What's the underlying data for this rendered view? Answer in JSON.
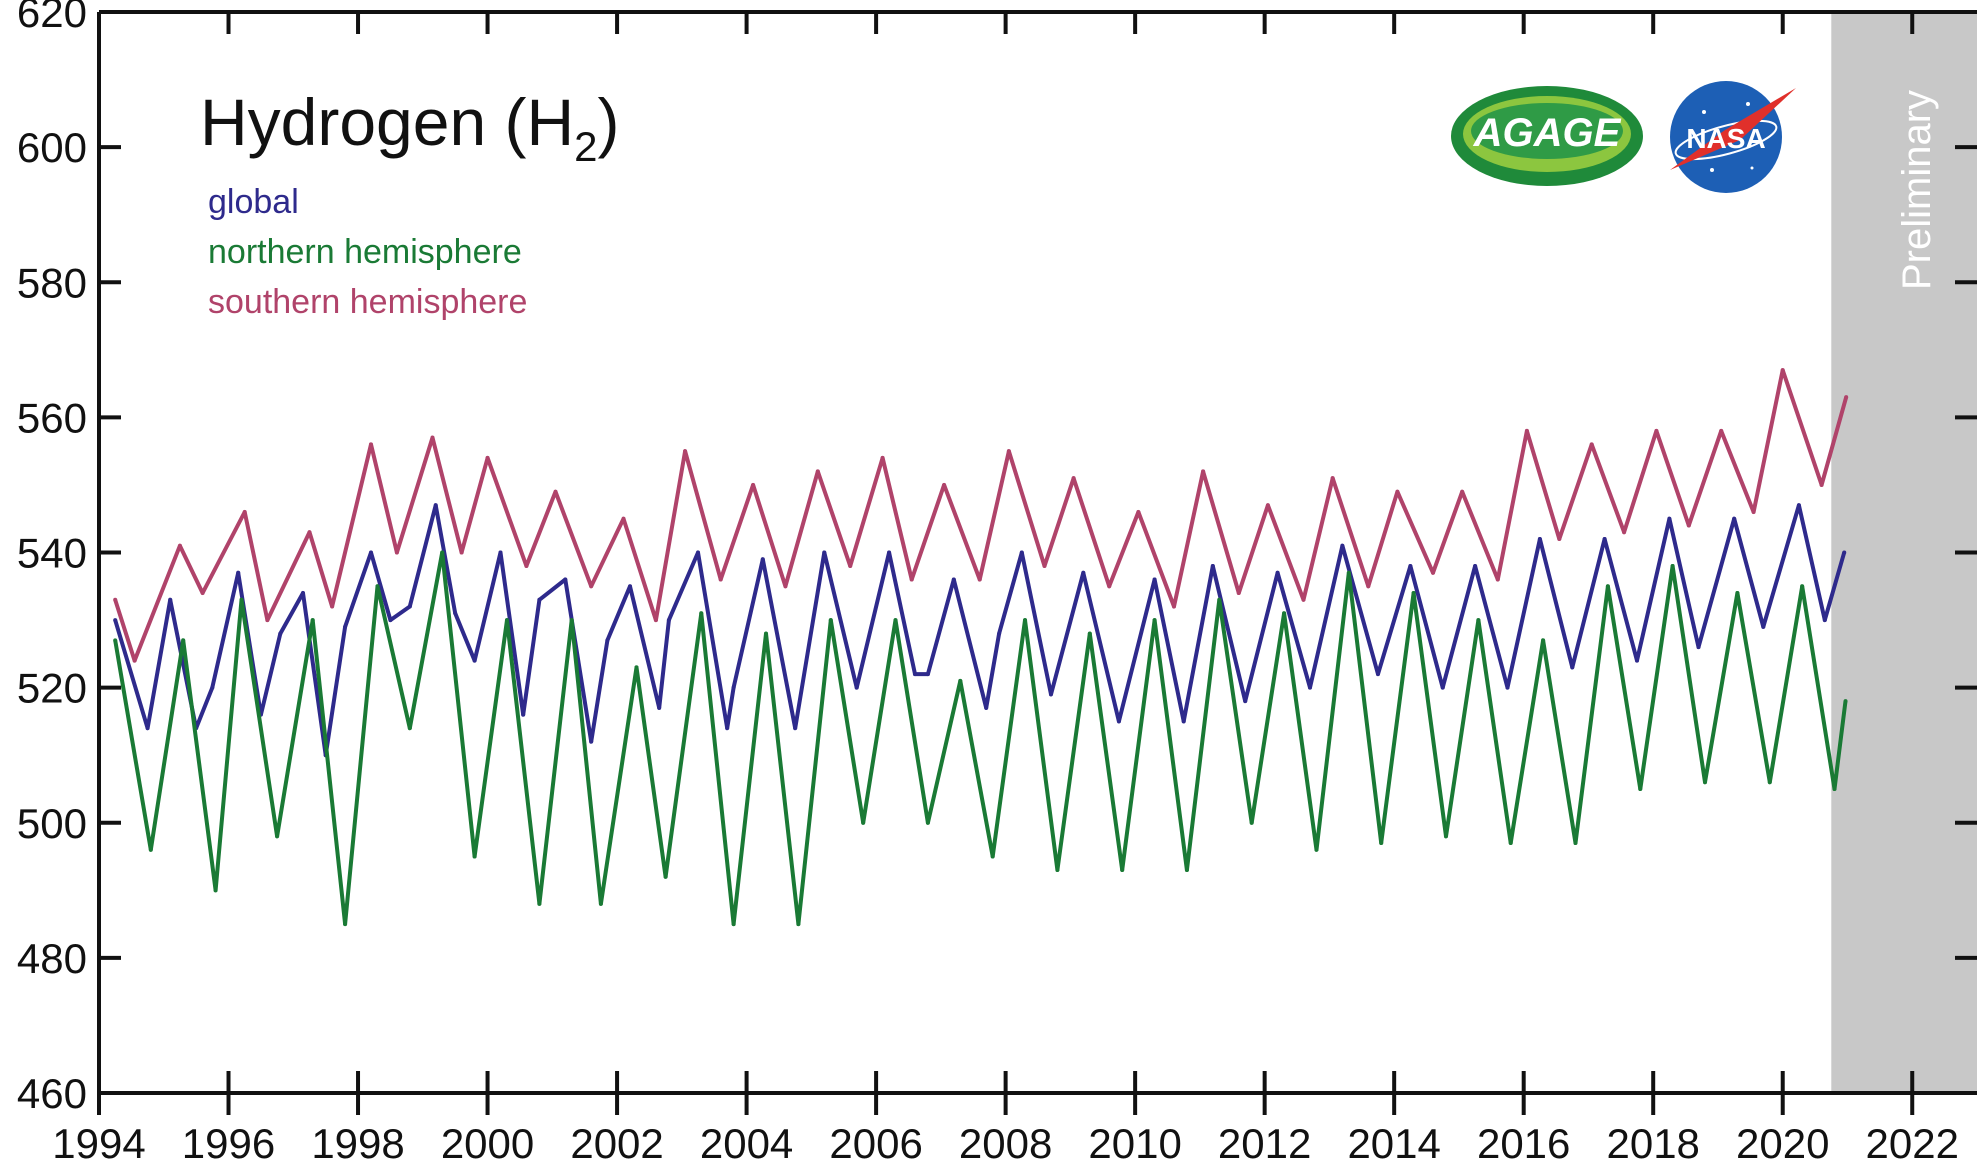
{
  "chart_data": {
    "type": "line",
    "title": "Hydrogen (H",
    "title_subscript": "2",
    "title_close": ")",
    "xlabel": "",
    "ylabel": "",
    "xlim": [
      1994,
      2023
    ],
    "ylim": [
      460,
      620
    ],
    "x_ticks": [
      "1994",
      "1996",
      "1998",
      "2000",
      "2002",
      "2004",
      "2006",
      "2008",
      "2010",
      "2012",
      "2014",
      "2016",
      "2018",
      "2020",
      "2022"
    ],
    "y_ticks": [
      "460",
      "480",
      "500",
      "520",
      "540",
      "560",
      "580",
      "600",
      "620"
    ],
    "grid": false,
    "legend_position": "top-left",
    "preliminary_label": "Preliminary",
    "preliminary_range": [
      2020.75,
      2023
    ],
    "logos": [
      "AGAGE",
      "NASA"
    ],
    "series": [
      {
        "name": "global",
        "color": "#2e2a8c",
        "x": [
          1994.25,
          1994.75,
          1995.1,
          1995.5,
          1995.75,
          1996.15,
          1996.5,
          1996.8,
          1997.15,
          1997.5,
          1997.8,
          1998.2,
          1998.5,
          1998.8,
          1999.2,
          1999.5,
          1999.8,
          2000.2,
          2000.55,
          2000.8,
          2001.2,
          2001.6,
          2001.85,
          2002.2,
          2002.65,
          2002.8,
          2003.25,
          2003.7,
          2003.8,
          2004.25,
          2004.75,
          2005.2,
          2005.7,
          2006.2,
          2006.6,
          2006.8,
          2007.2,
          2007.7,
          2007.9,
          2008.25,
          2008.7,
          2009.2,
          2009.75,
          2010.3,
          2010.75,
          2011.2,
          2011.7,
          2012.2,
          2012.7,
          2013.2,
          2013.75,
          2014.25,
          2014.75,
          2015.25,
          2015.75,
          2016.25,
          2016.75,
          2017.25,
          2017.75,
          2018.25,
          2018.7,
          2019.25,
          2019.7,
          2020.25,
          2020.65,
          2020.95
        ],
        "values": [
          530,
          514,
          533,
          514,
          520,
          537,
          516,
          528,
          534,
          510,
          529,
          540,
          530,
          532,
          547,
          531,
          524,
          540,
          516,
          533,
          536,
          512,
          527,
          535,
          517,
          530,
          540,
          514,
          520,
          539,
          514,
          540,
          520,
          540,
          522,
          522,
          536,
          517,
          528,
          540,
          519,
          537,
          515,
          536,
          515,
          538,
          518,
          537,
          520,
          541,
          522,
          538,
          520,
          538,
          520,
          542,
          523,
          542,
          524,
          545,
          526,
          545,
          529,
          547,
          530,
          540
        ]
      },
      {
        "name": "northern hemisphere",
        "color": "#1a7a35",
        "x": [
          1994.25,
          1994.8,
          1995.3,
          1995.8,
          1996.2,
          1996.75,
          1997.3,
          1997.8,
          1998.3,
          1998.8,
          1999.3,
          1999.8,
          2000.3,
          2000.8,
          2001.3,
          2001.75,
          2002.3,
          2002.75,
          2003.3,
          2003.8,
          2004.3,
          2004.8,
          2005.3,
          2005.8,
          2006.3,
          2006.8,
          2007.3,
          2007.8,
          2008.3,
          2008.8,
          2009.3,
          2009.8,
          2010.3,
          2010.8,
          2011.3,
          2011.8,
          2012.3,
          2012.8,
          2013.3,
          2013.8,
          2014.3,
          2014.8,
          2015.3,
          2015.8,
          2016.3,
          2016.8,
          2017.3,
          2017.8,
          2018.3,
          2018.8,
          2019.3,
          2019.8,
          2020.3,
          2020.8,
          2020.97
        ],
        "values": [
          527,
          496,
          527,
          490,
          533,
          498,
          530,
          485,
          535,
          514,
          540,
          495,
          530,
          488,
          530,
          488,
          523,
          492,
          531,
          485,
          528,
          485,
          530,
          500,
          530,
          500,
          521,
          495,
          530,
          493,
          528,
          493,
          530,
          493,
          533,
          500,
          531,
          496,
          537,
          497,
          534,
          498,
          530,
          497,
          527,
          497,
          535,
          505,
          538,
          506,
          534,
          506,
          535,
          505,
          518
        ]
      },
      {
        "name": "southern hemisphere",
        "color": "#b0436a",
        "x": [
          1994.25,
          1994.55,
          1995.25,
          1995.6,
          1996.25,
          1996.6,
          1997.25,
          1997.6,
          1998.2,
          1998.6,
          1999.15,
          1999.6,
          2000.0,
          2000.6,
          2001.05,
          2001.6,
          2002.1,
          2002.6,
          2003.05,
          2003.6,
          2004.1,
          2004.6,
          2005.1,
          2005.6,
          2006.1,
          2006.55,
          2007.05,
          2007.6,
          2008.05,
          2008.6,
          2009.05,
          2009.6,
          2010.05,
          2010.6,
          2011.05,
          2011.6,
          2012.05,
          2012.6,
          2013.05,
          2013.6,
          2014.05,
          2014.6,
          2015.05,
          2015.6,
          2016.05,
          2016.55,
          2017.05,
          2017.55,
          2018.05,
          2018.55,
          2019.05,
          2019.55,
          2020.0,
          2020.6,
          2020.98
        ],
        "values": [
          533,
          524,
          541,
          534,
          546,
          530,
          543,
          532,
          556,
          540,
          557,
          540,
          554,
          538,
          549,
          535,
          545,
          530,
          555,
          536,
          550,
          535,
          552,
          538,
          554,
          536,
          550,
          536,
          555,
          538,
          551,
          535,
          546,
          532,
          552,
          534,
          547,
          533,
          551,
          535,
          549,
          537,
          549,
          536,
          558,
          542,
          556,
          543,
          558,
          544,
          558,
          546,
          567,
          550,
          563
        ]
      }
    ]
  }
}
